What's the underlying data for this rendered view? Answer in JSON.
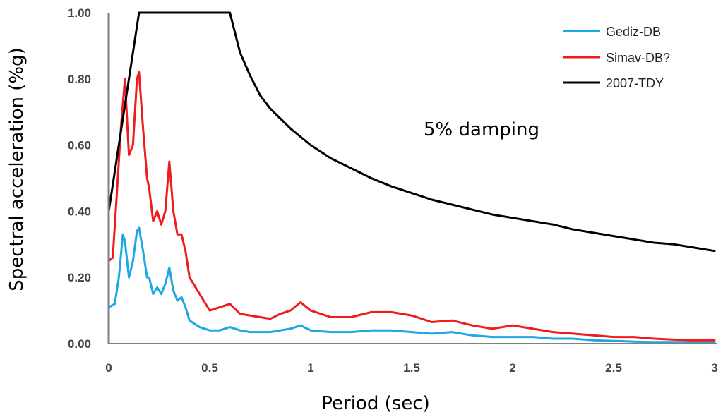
{
  "chart_data": {
    "type": "line",
    "xlabel": "Period (sec)",
    "ylabel": "Spectral acceleration (%g)",
    "xlim": [
      0,
      3
    ],
    "ylim": [
      0,
      1.0
    ],
    "x_ticks": [
      "0",
      "0.5",
      "1",
      "1.5",
      "2",
      "2.5",
      "3"
    ],
    "y_ticks": [
      "0.00",
      "0.20",
      "0.40",
      "0.60",
      "0.80",
      "1.00"
    ],
    "grid": false,
    "legend_position": "top-right",
    "annotation": "5% damping",
    "series": [
      {
        "name": "Gediz-DB",
        "color": "#1ea7e4",
        "x": [
          0,
          0.03,
          0.05,
          0.07,
          0.08,
          0.1,
          0.12,
          0.14,
          0.15,
          0.17,
          0.19,
          0.2,
          0.22,
          0.24,
          0.26,
          0.28,
          0.3,
          0.32,
          0.34,
          0.36,
          0.38,
          0.4,
          0.45,
          0.5,
          0.55,
          0.6,
          0.65,
          0.7,
          0.75,
          0.8,
          0.85,
          0.9,
          0.95,
          1.0,
          1.1,
          1.2,
          1.3,
          1.4,
          1.5,
          1.6,
          1.7,
          1.8,
          1.9,
          2.0,
          2.1,
          2.2,
          2.3,
          2.4,
          2.5,
          2.6,
          2.7,
          2.8,
          2.9,
          3.0
        ],
        "y": [
          0.11,
          0.12,
          0.2,
          0.33,
          0.31,
          0.2,
          0.25,
          0.34,
          0.35,
          0.28,
          0.2,
          0.2,
          0.15,
          0.17,
          0.15,
          0.18,
          0.23,
          0.16,
          0.13,
          0.14,
          0.11,
          0.07,
          0.05,
          0.04,
          0.04,
          0.05,
          0.04,
          0.035,
          0.035,
          0.035,
          0.04,
          0.045,
          0.055,
          0.04,
          0.035,
          0.035,
          0.04,
          0.04,
          0.035,
          0.03,
          0.035,
          0.025,
          0.02,
          0.02,
          0.02,
          0.015,
          0.015,
          0.01,
          0.008,
          0.006,
          0.005,
          0.005,
          0.004,
          0.004
        ]
      },
      {
        "name": "Simav-DB?",
        "color": "#ee1c1c",
        "x": [
          0,
          0.02,
          0.04,
          0.06,
          0.08,
          0.1,
          0.12,
          0.14,
          0.15,
          0.17,
          0.19,
          0.2,
          0.22,
          0.24,
          0.26,
          0.28,
          0.3,
          0.32,
          0.34,
          0.36,
          0.38,
          0.4,
          0.45,
          0.5,
          0.55,
          0.6,
          0.65,
          0.7,
          0.75,
          0.8,
          0.85,
          0.9,
          0.95,
          1.0,
          1.1,
          1.2,
          1.3,
          1.4,
          1.5,
          1.6,
          1.7,
          1.8,
          1.9,
          2.0,
          2.1,
          2.2,
          2.3,
          2.4,
          2.5,
          2.6,
          2.7,
          2.8,
          2.9,
          3.0
        ],
        "y": [
          0.25,
          0.26,
          0.45,
          0.65,
          0.8,
          0.57,
          0.6,
          0.8,
          0.82,
          0.65,
          0.5,
          0.47,
          0.37,
          0.4,
          0.36,
          0.4,
          0.55,
          0.4,
          0.33,
          0.33,
          0.28,
          0.2,
          0.15,
          0.1,
          0.11,
          0.12,
          0.09,
          0.085,
          0.08,
          0.075,
          0.09,
          0.1,
          0.125,
          0.1,
          0.08,
          0.08,
          0.095,
          0.095,
          0.085,
          0.065,
          0.07,
          0.055,
          0.045,
          0.055,
          0.045,
          0.035,
          0.03,
          0.025,
          0.02,
          0.02,
          0.015,
          0.012,
          0.01,
          0.01
        ]
      },
      {
        "name": "2007-TDY",
        "color": "#000000",
        "x": [
          0,
          0.15,
          0.6,
          0.65,
          0.7,
          0.75,
          0.8,
          0.9,
          1.0,
          1.1,
          1.2,
          1.3,
          1.4,
          1.5,
          1.6,
          1.7,
          1.8,
          1.9,
          2.0,
          2.1,
          2.2,
          2.3,
          2.4,
          2.5,
          2.6,
          2.7,
          2.8,
          2.9,
          3.0
        ],
        "y": [
          0.4,
          1.0,
          1.0,
          0.88,
          0.81,
          0.75,
          0.71,
          0.65,
          0.6,
          0.56,
          0.53,
          0.5,
          0.475,
          0.455,
          0.435,
          0.42,
          0.405,
          0.39,
          0.38,
          0.37,
          0.36,
          0.345,
          0.335,
          0.325,
          0.315,
          0.305,
          0.3,
          0.29,
          0.28
        ]
      }
    ]
  }
}
